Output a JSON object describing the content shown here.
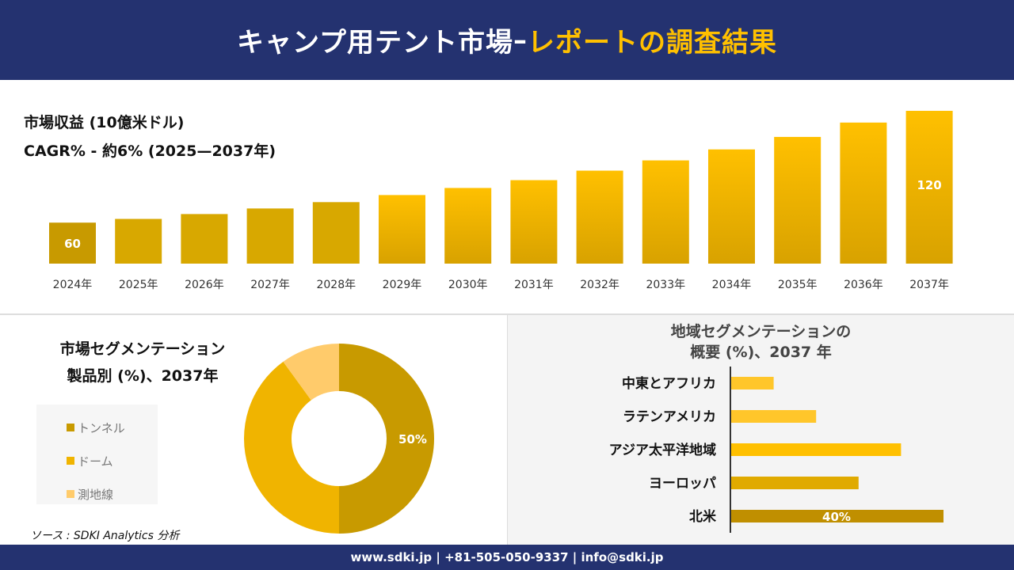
{
  "header": {
    "title_main": "キャンプ用テント市場",
    "title_dash": "–",
    "title_highlight": "レポートの調査結果"
  },
  "colors": {
    "navy": "#243270",
    "accent": "#FFC000"
  },
  "chart_data": [
    {
      "type": "bar",
      "title": "市場収益 (10億米ドル)",
      "subtitle": "CAGR% - 約6% (2025—2037年)",
      "categories": [
        "2024年",
        "2025年",
        "2026年",
        "2027年",
        "2028年",
        "2029年",
        "2030年",
        "2031年",
        "2032年",
        "2033年",
        "2034年",
        "2035年",
        "2036年",
        "2037年"
      ],
      "values": [
        60,
        62,
        64.6,
        67.6,
        71,
        74.8,
        78.6,
        82.8,
        87.9,
        93.4,
        99.3,
        106,
        113.7,
        120
      ],
      "data_labels": {
        "0": "60",
        "13": "120"
      },
      "ylim": [
        38,
        120
      ],
      "grid": false
    },
    {
      "type": "pie",
      "title": "市場セグメンテーション",
      "subtitle": "製品別 (%)、2037年",
      "categories": [
        "トンネル",
        "ドーム",
        "測地線"
      ],
      "values": [
        50,
        40,
        10
      ],
      "colors": [
        "#C89A00",
        "#F0B400",
        "#FFCB6B"
      ],
      "data_labels": {
        "0": "50%"
      },
      "legend": "left"
    },
    {
      "type": "bar",
      "orientation": "horizontal",
      "title": "地域セグメンテーションの",
      "subtitle": "概要 (%)、2037 年",
      "categories": [
        "中東とアフリカ",
        "ラテンアメリカ",
        "アジア太平洋地域",
        "ヨーロッパ",
        "北米"
      ],
      "values": [
        8,
        16,
        32,
        24,
        40
      ],
      "colors": [
        "#FFC62A",
        "#FFC62A",
        "#FFC000",
        "#E0AA00",
        "#C08F00"
      ],
      "data_labels": {
        "4": "40%"
      }
    }
  ],
  "source": "ソース : SDKI Analytics 分析",
  "footer": "www.sdki.jp | +81-505-050-9337 | info@sdki.jp"
}
